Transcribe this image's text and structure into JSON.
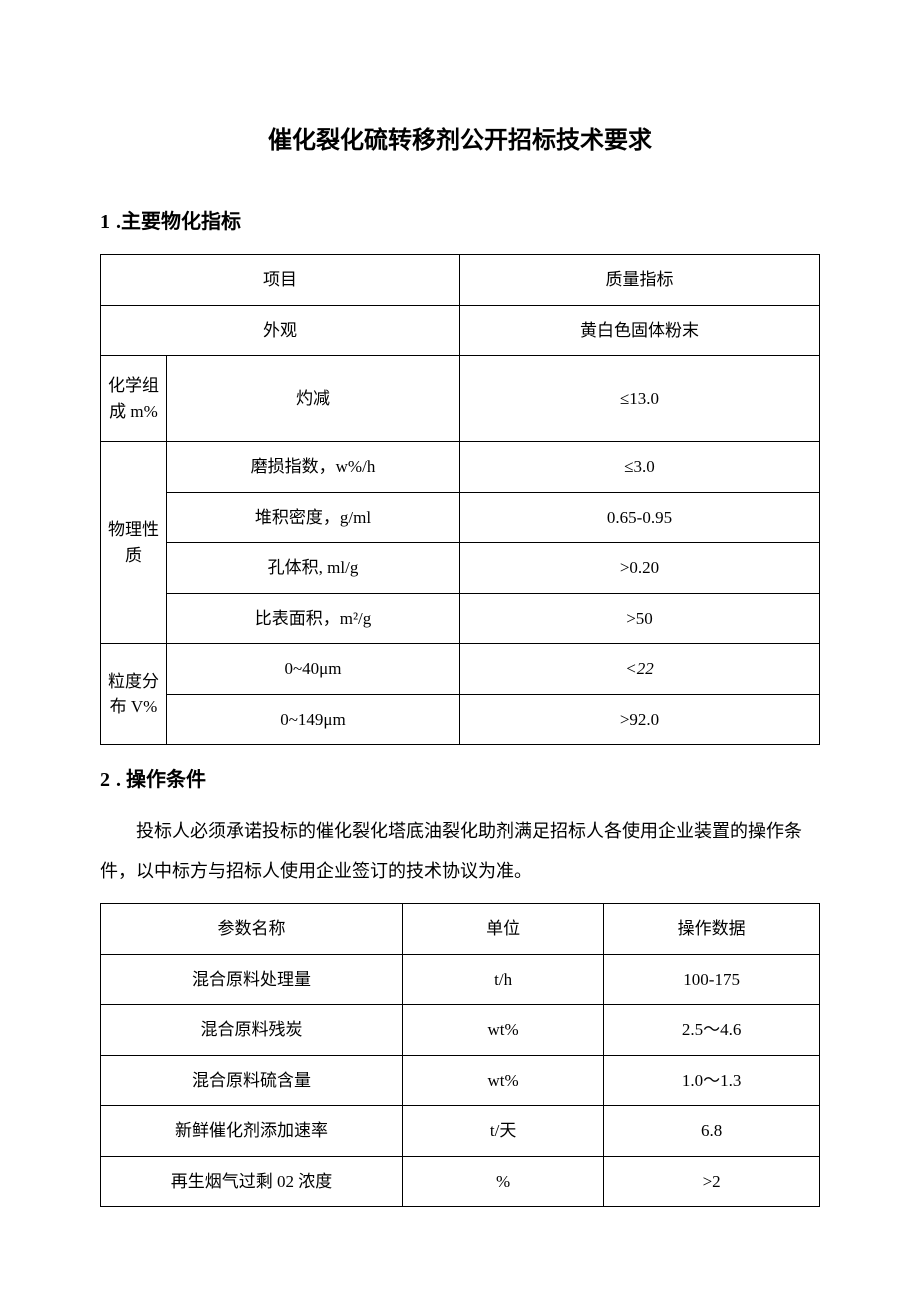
{
  "title": "催化裂化硫转移剂公开招标技术要求",
  "section1": {
    "number": "1",
    "heading": ".主要物化指标"
  },
  "table1": {
    "header": {
      "item": "项目",
      "spec": "质量指标"
    },
    "appearance": {
      "item": "外观",
      "value": "黄白色固体粉末"
    },
    "chem": {
      "label": "化学组成 m%",
      "r1_item": "灼减",
      "r1_val": "≤13.0"
    },
    "phys": {
      "label": "物理性质",
      "r1_item": "磨损指数，w%/h",
      "r1_val": "≤3.0",
      "r2_item": "堆积密度，g/ml",
      "r2_val": "0.65-0.95",
      "r3_item": "孔体积, ml/g",
      "r3_val": ">0.20",
      "r4_item": "比表面积，m²/g",
      "r4_val": ">50"
    },
    "psd": {
      "label": "粒度分布 V%",
      "r1_item": "0~40μm",
      "r1_val": "<22",
      "r2_item": "0~149μm",
      "r2_val": ">92.0"
    }
  },
  "section2": {
    "number": "2",
    "heading": ". 操作条件",
    "paragraph": "投标人必须承诺投标的催化裂化塔底油裂化助剂满足招标人各使用企业装置的操作条件，以中标方与招标人使用企业签订的技术协议为准。"
  },
  "table2": {
    "header": {
      "c1": "参数名称",
      "c2": "单位",
      "c3": "操作数据"
    },
    "rows": {
      "r1": {
        "c1": "混合原料处理量",
        "c2": "t/h",
        "c3": "100-175"
      },
      "r2": {
        "c1": "混合原料残炭",
        "c2": "wt%",
        "c3": "2.5～4.6"
      },
      "r3": {
        "c1": "混合原料硫含量",
        "c2": "wt%",
        "c3": "1.0～1.3"
      },
      "r4": {
        "c1": "新鲜催化剂添加速率",
        "c2": "t/天",
        "c3": "6.8"
      },
      "r5": {
        "c1": "再生烟气过剩 02 浓度",
        "c2": "%",
        "c3": ">2"
      }
    }
  }
}
